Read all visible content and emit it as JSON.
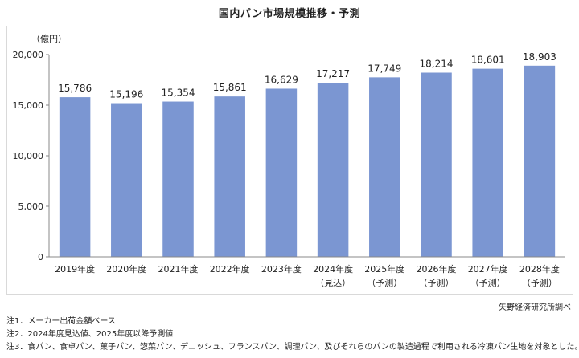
{
  "chart_data": {
    "type": "bar",
    "title": "国内パン市場規模推移・予測",
    "ylabel": "（億円）",
    "ylim": [
      0,
      20000
    ],
    "yticks": [
      0,
      5000,
      10000,
      15000,
      20000
    ],
    "ytick_labels": [
      "0",
      "5,000",
      "10,000",
      "15,000",
      "20,000"
    ],
    "grid": false,
    "categories": [
      "2019年度",
      "2020年度",
      "2021年度",
      "2022年度",
      "2023年度",
      "2024年度",
      "2025年度",
      "2026年度",
      "2027年度",
      "2028年度"
    ],
    "category_sublabels": [
      "",
      "",
      "",
      "",
      "",
      "（見込）",
      "（予測）",
      "（予測）",
      "（予測）",
      "（予測）"
    ],
    "values": [
      15786,
      15196,
      15354,
      15861,
      16629,
      17217,
      17749,
      18214,
      18601,
      18903
    ],
    "value_labels": [
      "15,786",
      "15,196",
      "15,354",
      "15,861",
      "16,629",
      "17,217",
      "17,749",
      "18,214",
      "18,601",
      "18,903"
    ],
    "bar_color": "#7b96d2"
  },
  "source": "矢野経済研究所調べ",
  "notes": [
    "注1．メーカー出荷金額ベース",
    "注2．2024年度見込値、2025年度以降予測値",
    "注3．食パン、食卓パン、菓子パン、惣菜パン、デニッシュ、フランスパン、調理パン、及びそれらのパンの製造過程で利用される冷凍パン生地を対象とした。"
  ]
}
